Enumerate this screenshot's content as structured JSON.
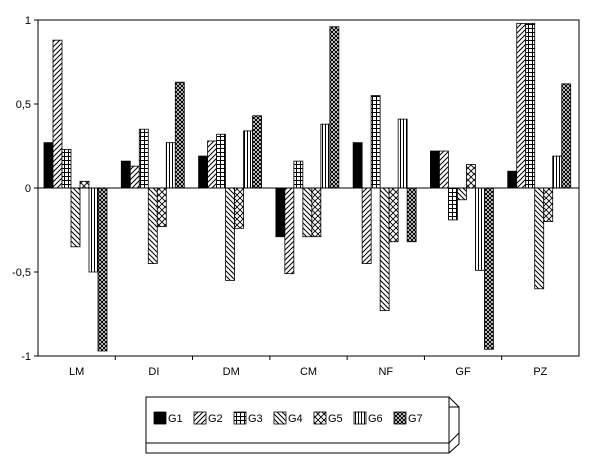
{
  "chart_data": {
    "type": "bar",
    "categories": [
      "LM",
      "DI",
      "DM",
      "CM",
      "NF",
      "GF",
      "PZ"
    ],
    "ylim": [
      -1,
      1
    ],
    "yticks": [
      1,
      0.5,
      0,
      -0.5,
      -1
    ],
    "ytick_labels": [
      "1",
      "0,5",
      "0",
      "-0,5",
      "-1"
    ],
    "grid": false,
    "legend_position": "bottom",
    "series": [
      {
        "name": "G1",
        "pattern": "solid",
        "values": [
          0.27,
          0.16,
          0.19,
          -0.29,
          0.27,
          0.22,
          0.1
        ]
      },
      {
        "name": "G2",
        "pattern": "diag-fwd",
        "values": [
          0.88,
          0.13,
          0.28,
          -0.51,
          -0.45,
          0.22,
          0.98
        ]
      },
      {
        "name": "G3",
        "pattern": "grid",
        "values": [
          0.23,
          0.35,
          0.32,
          0.16,
          0.55,
          -0.19,
          0.98
        ]
      },
      {
        "name": "G4",
        "pattern": "diag-back",
        "values": [
          -0.35,
          -0.45,
          -0.55,
          -0.29,
          -0.73,
          -0.07,
          -0.6
        ]
      },
      {
        "name": "G5",
        "pattern": "crosshatch",
        "values": [
          0.04,
          -0.23,
          -0.24,
          -0.29,
          -0.32,
          0.14,
          -0.2
        ]
      },
      {
        "name": "G6",
        "pattern": "vertical",
        "values": [
          -0.5,
          0.27,
          0.34,
          0.38,
          0.41,
          -0.49,
          0.19
        ]
      },
      {
        "name": "G7",
        "pattern": "dense-cross",
        "values": [
          -0.97,
          0.63,
          0.43,
          0.96,
          -0.32,
          -0.96,
          0.62
        ]
      }
    ]
  }
}
